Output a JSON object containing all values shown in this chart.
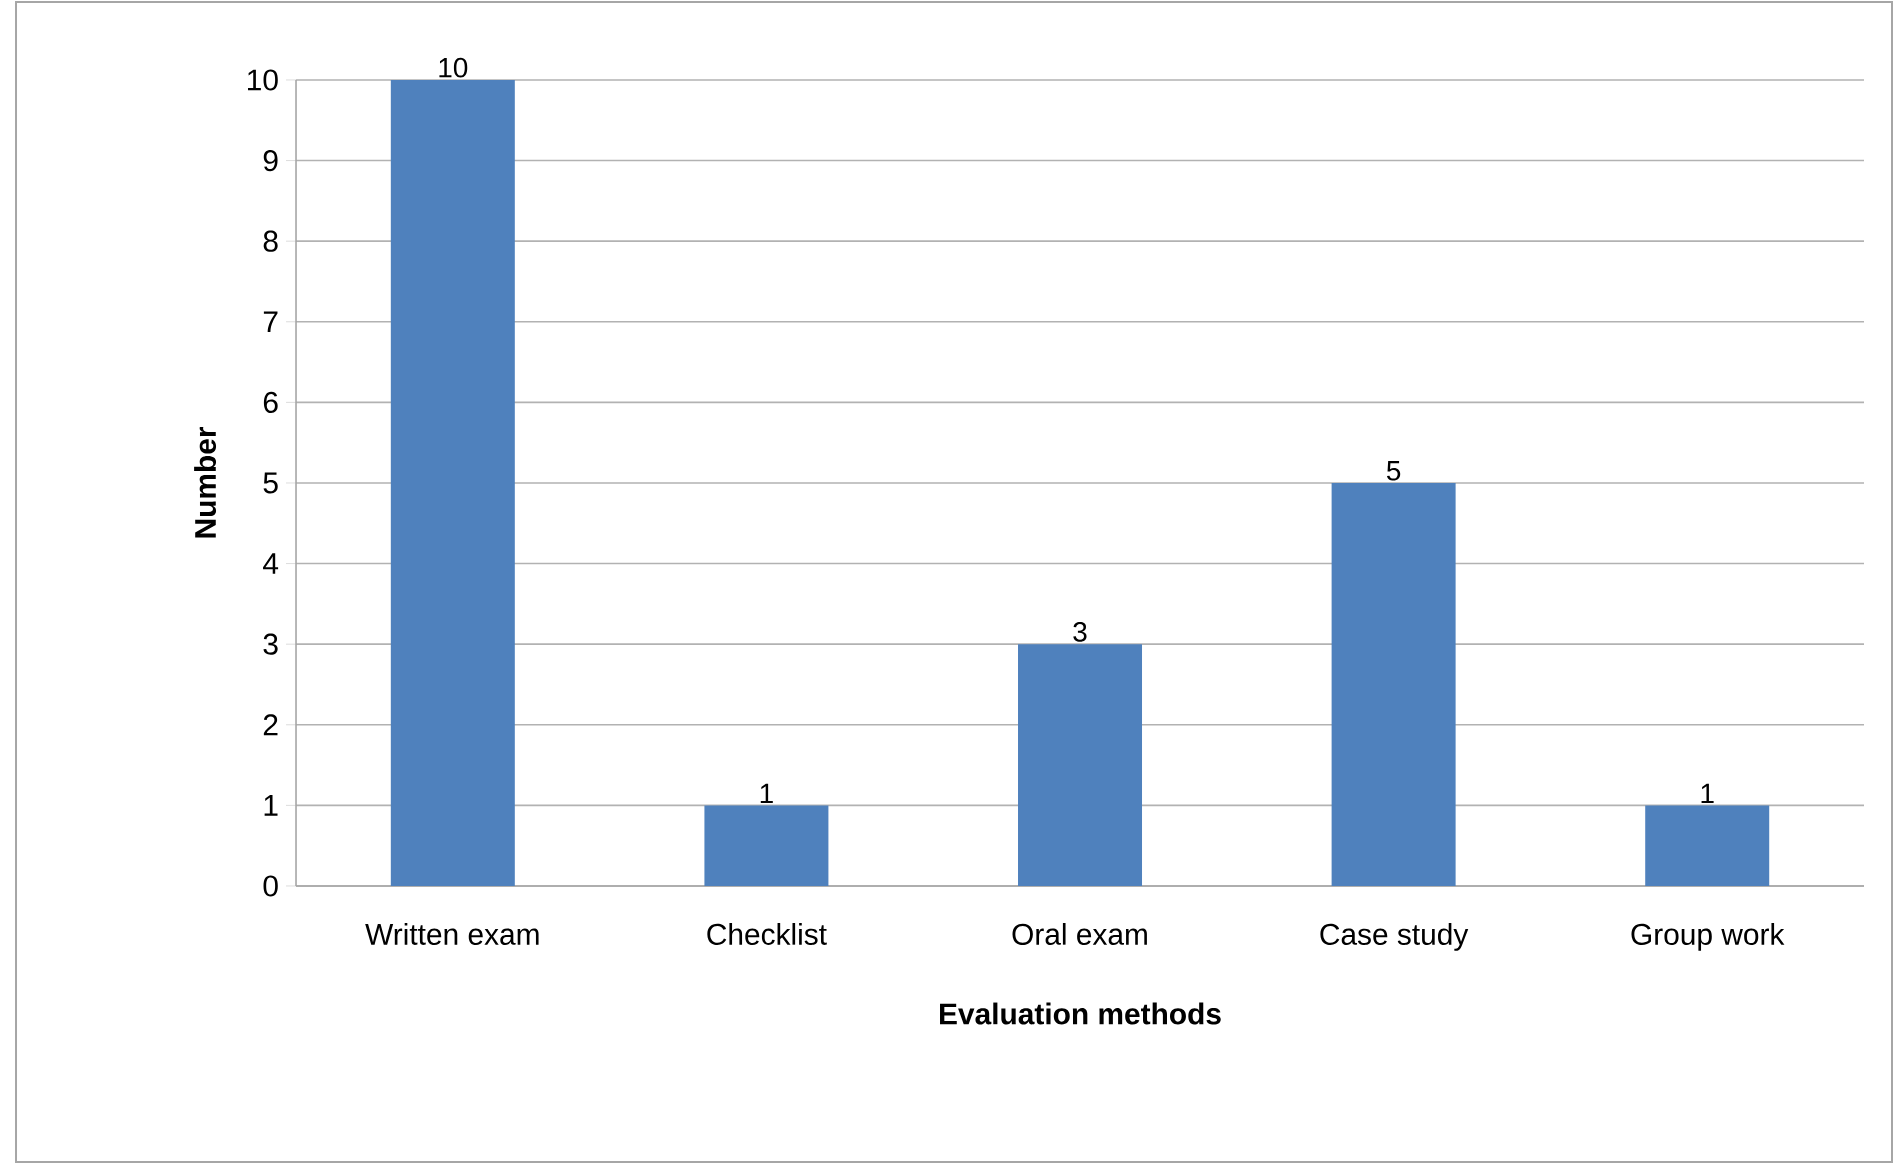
{
  "chart_data": {
    "type": "bar",
    "xlabel": "Evaluation methods",
    "ylabel": "Number",
    "categories": [
      "Written exam",
      "Checklist",
      "Oral exam",
      "Case study",
      "Group work"
    ],
    "values": [
      10,
      1,
      3,
      5,
      1
    ],
    "color": "#4f81bd",
    "ylim": [
      0,
      10
    ],
    "yticks": [
      0,
      1,
      2,
      3,
      4,
      5,
      6,
      7,
      8,
      9,
      10
    ],
    "grid": "y",
    "data_labels": true
  }
}
